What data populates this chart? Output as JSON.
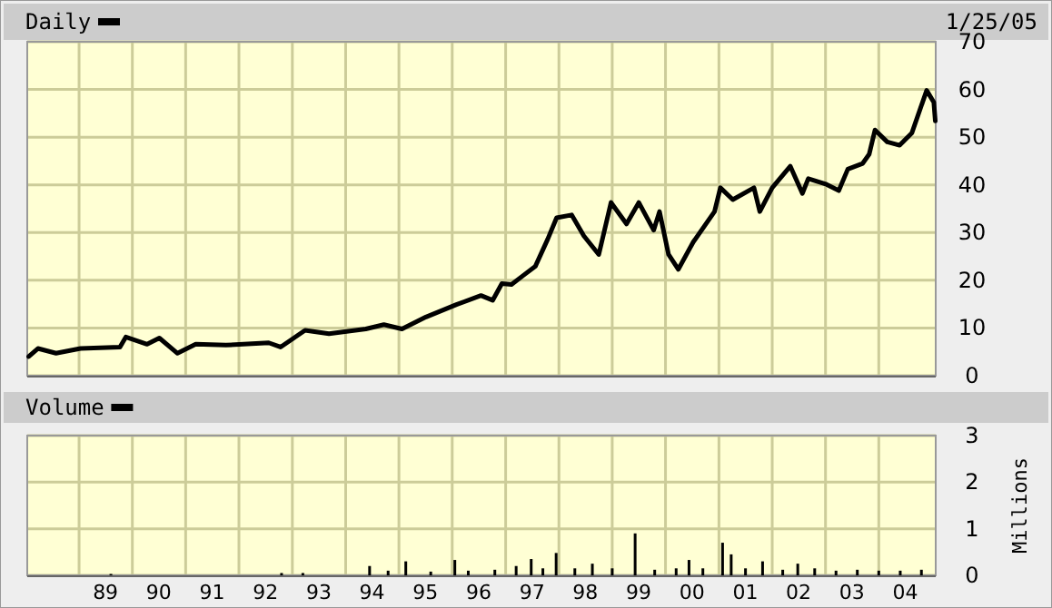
{
  "chart_data": [
    {
      "type": "line",
      "annotations": [
        "1/25/05"
      ],
      "legend": "top left",
      "grid": true,
      "xlim": [
        "1988-01-12",
        "2005-01-25"
      ],
      "ylim": [
        0,
        70
      ],
      "yticks": [
        0,
        10,
        20,
        30,
        40,
        50,
        60,
        70
      ],
      "xticks": [
        {
          "value": "1989-01-01",
          "label": null
        },
        {
          "value": "1990-01-01",
          "label": null
        },
        {
          "value": "1991-01-01",
          "label": null
        },
        {
          "value": "1992-01-01",
          "label": null
        },
        {
          "value": "1993-01-01",
          "label": null
        },
        {
          "value": "1994-01-01",
          "label": null
        },
        {
          "value": "1995-01-01",
          "label": null
        },
        {
          "value": "1996-01-01",
          "label": null
        },
        {
          "value": "1997-01-01",
          "label": null
        },
        {
          "value": "1998-01-01",
          "label": null
        },
        {
          "value": "1999-01-01",
          "label": null
        },
        {
          "value": "2000-01-01",
          "label": null
        },
        {
          "value": "2001-01-01",
          "label": null
        },
        {
          "value": "2002-01-01",
          "label": null
        },
        {
          "value": "2003-01-01",
          "label": null
        },
        {
          "value": "2004-01-01",
          "label": null
        }
      ],
      "tick_labels": "y",
      "series": [
        {
          "name": "Daily",
          "color": "#000000",
          "x": [
            "1988-01-22",
            "1988-03-25",
            "1988-07-27",
            "1989-01-11",
            "1989-10-08",
            "1989-11-17",
            "1990-04-12",
            "1990-07-05",
            "1990-11-06",
            "1991-03-11",
            "1991-10-04",
            "1992-07-23",
            "1992-10-12",
            "1993-03-29",
            "1993-09-09",
            "1994-05-19",
            "1994-09-20",
            "1995-01-22",
            "1995-07-05",
            "1996-01-30",
            "1996-07-16",
            "1996-10-04",
            "1996-12-06",
            "1997-02-10",
            "1997-05-01",
            "1997-07-23",
            "1997-10-16",
            "1997-12-16",
            "1998-03-29",
            "1998-06-21",
            "1998-10-01",
            "1998-12-24",
            "1999-04-09",
            "1999-07-02",
            "1999-10-12",
            "1999-11-21",
            "2000-01-22",
            "2000-03-29",
            "2000-07-09",
            "2000-12-02",
            "2001-01-11",
            "2001-04-06",
            "2001-08-29",
            "2001-10-08",
            "2002-01-01",
            "2002-05-05",
            "2002-07-27",
            "2002-09-05",
            "2003-01-08",
            "2003-04-02",
            "2003-06-03",
            "2003-09-13",
            "2003-10-27",
            "2003-12-06",
            "2004-02-28",
            "2004-05-23",
            "2004-08-15",
            "2004-11-24",
            "2005-01-12",
            "2005-01-22"
          ],
          "values": [
            4.0,
            5.7,
            4.7,
            5.7,
            6.0,
            8.1,
            6.6,
            7.9,
            4.7,
            6.6,
            6.4,
            6.9,
            6.0,
            9.5,
            8.8,
            9.8,
            10.7,
            9.8,
            12.3,
            14.9,
            16.8,
            15.8,
            19.3,
            19.1,
            21.0,
            22.9,
            28.6,
            33.1,
            33.7,
            29.3,
            25.4,
            36.3,
            31.8,
            36.3,
            30.5,
            34.4,
            25.4,
            22.3,
            28.0,
            34.4,
            39.4,
            36.9,
            39.4,
            34.4,
            39.4,
            43.9,
            38.2,
            41.3,
            40.1,
            38.8,
            43.3,
            44.5,
            46.4,
            51.5,
            49.0,
            48.3,
            50.9,
            59.8,
            57.3,
            53.4
          ]
        }
      ]
    },
    {
      "type": "bar",
      "ylabel": "Millions",
      "legend": "top left",
      "grid": true,
      "xlim": [
        "1988-01-12",
        "2005-01-25"
      ],
      "ylim": [
        0,
        3
      ],
      "yticks": [
        0,
        1,
        2,
        3
      ],
      "xticks": [
        {
          "value": "1989-01-01",
          "label": null
        },
        {
          "value": "1989-07-01",
          "label": "89"
        },
        {
          "value": "1990-01-01",
          "label": null
        },
        {
          "value": "1990-07-01",
          "label": "90"
        },
        {
          "value": "1991-01-01",
          "label": null
        },
        {
          "value": "1991-07-01",
          "label": "91"
        },
        {
          "value": "1992-01-01",
          "label": null
        },
        {
          "value": "1992-07-01",
          "label": "92"
        },
        {
          "value": "1993-01-01",
          "label": null
        },
        {
          "value": "1993-07-01",
          "label": "93"
        },
        {
          "value": "1994-01-01",
          "label": null
        },
        {
          "value": "1994-07-01",
          "label": "94"
        },
        {
          "value": "1995-01-01",
          "label": null
        },
        {
          "value": "1995-07-01",
          "label": "95"
        },
        {
          "value": "1996-01-01",
          "label": null
        },
        {
          "value": "1996-07-01",
          "label": "96"
        },
        {
          "value": "1997-01-01",
          "label": null
        },
        {
          "value": "1997-07-01",
          "label": "97"
        },
        {
          "value": "1998-01-01",
          "label": null
        },
        {
          "value": "1998-07-01",
          "label": "98"
        },
        {
          "value": "1999-01-01",
          "label": null
        },
        {
          "value": "1999-07-01",
          "label": "99"
        },
        {
          "value": "2000-01-01",
          "label": null
        },
        {
          "value": "2000-07-01",
          "label": "00"
        },
        {
          "value": "2001-01-01",
          "label": null
        },
        {
          "value": "2001-07-01",
          "label": "01"
        },
        {
          "value": "2002-01-01",
          "label": null
        },
        {
          "value": "2002-07-01",
          "label": "02"
        },
        {
          "value": "2003-01-01",
          "label": null
        },
        {
          "value": "2003-07-01",
          "label": "03"
        },
        {
          "value": "2004-01-01",
          "label": null
        },
        {
          "value": "2004-07-01",
          "label": "04"
        }
      ],
      "series": [
        {
          "name": "Volume",
          "color": "#000000",
          "x": [
            "1989-08-07",
            "1992-10-19",
            "1993-03-14",
            "1994-06-14",
            "1994-10-19",
            "1995-02-17",
            "1995-08-07",
            "1996-01-19",
            "1996-04-20",
            "1996-10-19",
            "1997-03-14",
            "1997-06-25",
            "1997-09-13",
            "1997-12-13",
            "1998-04-20",
            "1998-08-18",
            "1999-01-01",
            "1999-06-07",
            "1999-10-19",
            "2000-03-14",
            "2000-06-10",
            "2000-09-13",
            "2001-01-26",
            "2001-03-26",
            "2001-07-02",
            "2001-10-27",
            "2002-03-14",
            "2002-06-25",
            "2002-10-19",
            "2003-03-14",
            "2003-08-07",
            "2004-01-01",
            "2004-05-27",
            "2004-10-19"
          ],
          "values": [
            0.03,
            0.05,
            0.05,
            0.2,
            0.1,
            0.3,
            0.08,
            0.33,
            0.1,
            0.12,
            0.2,
            0.35,
            0.15,
            0.48,
            0.15,
            0.25,
            0.15,
            0.9,
            0.12,
            0.15,
            0.33,
            0.15,
            0.7,
            0.45,
            0.15,
            0.3,
            0.12,
            0.25,
            0.15,
            0.1,
            0.12,
            0.1,
            0.1,
            0.12
          ]
        }
      ]
    }
  ]
}
